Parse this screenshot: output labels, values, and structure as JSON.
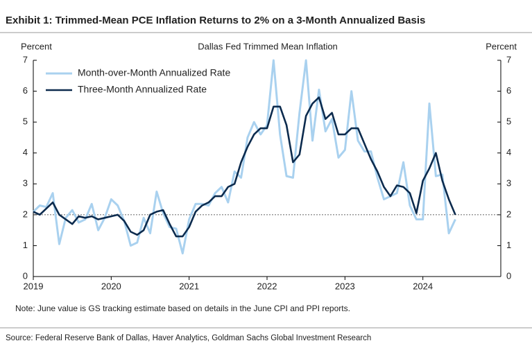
{
  "header": {
    "title": "Exhibit 1: Trimmed-Mean PCE Inflation Returns to 2% on a 3-Month Annualized Basis"
  },
  "chart_data": {
    "type": "line",
    "title": "Dallas Fed Trimmed Mean Inflation",
    "ylabel": "Percent",
    "y2label": "Percent",
    "x": [
      2019,
      2019.0833,
      2019.1667,
      2019.25,
      2019.3333,
      2019.4167,
      2019.5,
      2019.5833,
      2019.6667,
      2019.75,
      2019.8333,
      2019.9167,
      2020,
      2020.0833,
      2020.1667,
      2020.25,
      2020.3333,
      2020.4167,
      2020.5,
      2020.5833,
      2020.6667,
      2020.75,
      2020.8333,
      2020.9167,
      2021,
      2021.0833,
      2021.1667,
      2021.25,
      2021.3333,
      2021.4167,
      2021.5,
      2021.5833,
      2021.6667,
      2021.75,
      2021.8333,
      2021.9167,
      2022,
      2022.0833,
      2022.1667,
      2022.25,
      2022.3333,
      2022.4167,
      2022.5,
      2022.5833,
      2022.6667,
      2022.75,
      2022.8333,
      2022.9167,
      2023,
      2023.0833,
      2023.1667,
      2023.25,
      2023.3333,
      2023.4167,
      2023.5,
      2023.5833,
      2023.6667,
      2023.75,
      2023.8333,
      2023.9167,
      2024,
      2024.0833,
      2024.1667,
      2024.25,
      2024.3333,
      2024.4167
    ],
    "series": [
      {
        "name": "Month-over-Month Annualized Rate",
        "color": "#a9d1ef",
        "values": [
          2.1,
          2.3,
          2.25,
          2.7,
          1.05,
          1.9,
          2.15,
          1.75,
          1.85,
          2.35,
          1.5,
          1.9,
          2.5,
          2.3,
          1.8,
          1.0,
          1.1,
          1.9,
          1.4,
          2.75,
          2.05,
          1.6,
          1.55,
          0.75,
          1.85,
          2.35,
          2.35,
          2.3,
          2.7,
          2.9,
          2.4,
          3.4,
          3.2,
          4.5,
          5.0,
          4.6,
          4.9,
          7.0,
          4.6,
          3.25,
          3.2,
          5.3,
          7.0,
          4.4,
          6.05,
          4.7,
          5.1,
          3.85,
          4.1,
          6.0,
          4.4,
          4.05,
          4.05,
          3.2,
          2.5,
          2.6,
          2.7,
          3.7,
          2.3,
          1.85,
          1.85,
          5.6,
          3.25,
          3.3,
          1.4,
          1.85
        ]
      },
      {
        "name": "Three-Month Annualized Rate",
        "color": "#0c2b4e",
        "values": [
          2.1,
          2.0,
          2.2,
          2.4,
          2.0,
          1.85,
          1.7,
          1.95,
          1.9,
          1.95,
          1.85,
          1.9,
          1.95,
          2.0,
          1.8,
          1.45,
          1.35,
          1.5,
          2.0,
          2.1,
          2.15,
          1.7,
          1.3,
          1.3,
          1.6,
          2.1,
          2.3,
          2.4,
          2.6,
          2.6,
          2.9,
          3.0,
          3.7,
          4.2,
          4.6,
          4.8,
          4.8,
          5.5,
          5.5,
          4.9,
          3.7,
          3.95,
          5.2,
          5.6,
          5.8,
          5.1,
          5.3,
          4.6,
          4.6,
          4.8,
          4.8,
          4.3,
          3.8,
          3.4,
          2.9,
          2.6,
          2.95,
          2.9,
          2.7,
          2.05,
          3.1,
          3.5,
          4.0,
          3.1,
          2.5,
          2.0
        ]
      }
    ],
    "reference_line": 2,
    "xlim": [
      2019,
      2025
    ],
    "xticks": [
      2019,
      2020,
      2021,
      2022,
      2023,
      2024
    ],
    "ylim": [
      0,
      7
    ],
    "yticks": [
      0,
      1,
      2,
      3,
      4,
      5,
      6,
      7
    ],
    "y2lim": [
      0,
      7
    ],
    "y2ticks": [
      0,
      1,
      2,
      3,
      4,
      5,
      6,
      7
    ],
    "legend": "upper left",
    "note": "Note: June value is GS tracking estimate based on details in the June CPI and PPI reports."
  },
  "footer": {
    "source": "Source: Federal Reserve Bank of Dallas, Haver Analytics, Goldman Sachs Global Investment Research"
  }
}
